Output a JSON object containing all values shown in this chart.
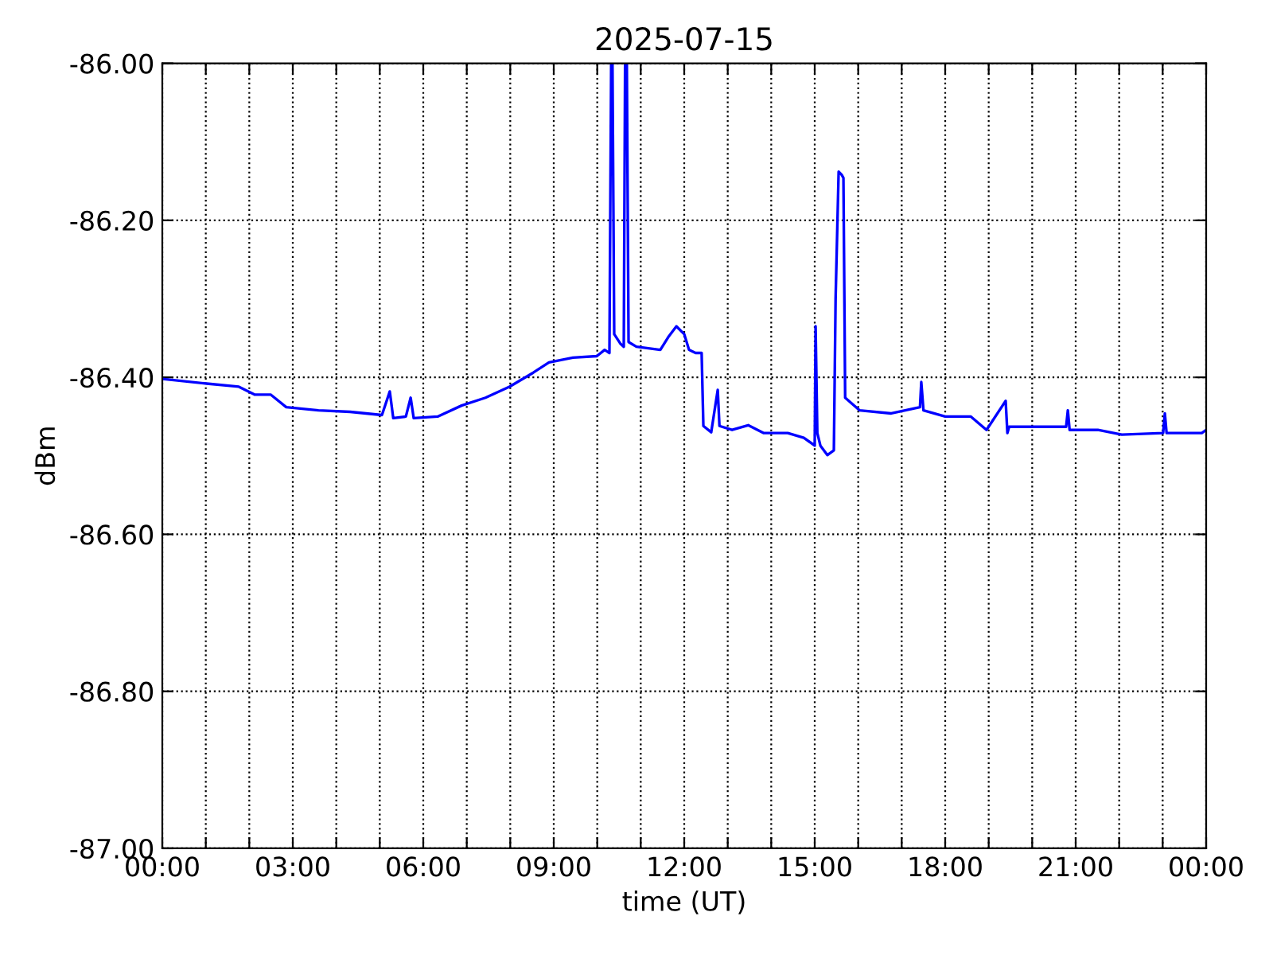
{
  "chart_data": {
    "type": "line",
    "title": "2025-07-15",
    "xlabel": "time (UT)",
    "ylabel": "dBm",
    "x": [
      0,
      1.02,
      1.76,
      2.12,
      2.49,
      2.85,
      3.59,
      4.32,
      5.05,
      5.23,
      5.31,
      5.6,
      5.71,
      5.78,
      6.33,
      6.88,
      7.43,
      7.98,
      8.53,
      8.89,
      9.44,
      9.99,
      10.17,
      10.28,
      10.32,
      10.35,
      10.39,
      10.53,
      10.61,
      10.64,
      10.68,
      10.72,
      10.9,
      11.45,
      11.63,
      11.82,
      12.0,
      12.11,
      12.26,
      12.4,
      12.44,
      12.62,
      12.77,
      12.81,
      13.1,
      13.47,
      13.83,
      14.38,
      14.75,
      15.0,
      15.02,
      15.06,
      15.13,
      15.29,
      15.44,
      15.48,
      15.55,
      15.62,
      15.66,
      15.7,
      16.03,
      16.76,
      17.42,
      17.45,
      17.5,
      18.0,
      18.59,
      18.95,
      19.39,
      19.43,
      19.47,
      20.05,
      20.78,
      20.82,
      20.86,
      21.51,
      22.06,
      23.01,
      23.05,
      23.09,
      23.9,
      24
    ],
    "series": [
      {
        "color": "#0000ff",
        "values": [
          -86.402,
          -86.408,
          -86.412,
          -86.422,
          -86.422,
          -86.438,
          -86.442,
          -86.444,
          -86.448,
          -86.418,
          -86.452,
          -86.45,
          -86.426,
          -86.452,
          -86.45,
          -86.436,
          -86.426,
          -86.412,
          -86.394,
          -86.381,
          -86.375,
          -86.373,
          -86.365,
          -86.369,
          -86.0,
          -86.0,
          -86.345,
          -86.357,
          -86.361,
          -86.0,
          -86.0,
          -86.355,
          -86.361,
          -86.365,
          -86.349,
          -86.335,
          -86.345,
          -86.365,
          -86.369,
          -86.369,
          -86.462,
          -86.47,
          -86.416,
          -86.462,
          -86.467,
          -86.461,
          -86.471,
          -86.471,
          -86.477,
          -86.487,
          -86.335,
          -86.471,
          -86.487,
          -86.499,
          -86.493,
          -86.3,
          -86.138,
          -86.142,
          -86.146,
          -86.426,
          -86.442,
          -86.446,
          -86.438,
          -86.406,
          -86.442,
          -86.45,
          -86.45,
          -86.467,
          -86.43,
          -86.471,
          -86.463,
          -86.463,
          -86.463,
          -86.442,
          -86.467,
          -86.467,
          -86.473,
          -86.471,
          -86.446,
          -86.471,
          -86.471,
          -86.467
        ]
      }
    ],
    "xlim": [
      0,
      24
    ],
    "xticks": [
      {
        "value": 0,
        "label": "00:00"
      },
      {
        "value": 1,
        "label": null
      },
      {
        "value": 2,
        "label": null
      },
      {
        "value": 3,
        "label": "03:00"
      },
      {
        "value": 4,
        "label": null
      },
      {
        "value": 5,
        "label": null
      },
      {
        "value": 6,
        "label": "06:00"
      },
      {
        "value": 7,
        "label": null
      },
      {
        "value": 8,
        "label": null
      },
      {
        "value": 9,
        "label": "09:00"
      },
      {
        "value": 10,
        "label": null
      },
      {
        "value": 11,
        "label": null
      },
      {
        "value": 12,
        "label": "12:00"
      },
      {
        "value": 13,
        "label": null
      },
      {
        "value": 14,
        "label": null
      },
      {
        "value": 15,
        "label": "15:00"
      },
      {
        "value": 16,
        "label": null
      },
      {
        "value": 17,
        "label": null
      },
      {
        "value": 18,
        "label": "18:00"
      },
      {
        "value": 19,
        "label": null
      },
      {
        "value": 20,
        "label": null
      },
      {
        "value": 21,
        "label": "21:00"
      },
      {
        "value": 22,
        "label": null
      },
      {
        "value": 23,
        "label": null
      },
      {
        "value": 24,
        "label": "00:00"
      }
    ],
    "ylim": [
      -87.0,
      -86.0
    ],
    "yticks": [
      {
        "value": -87.0,
        "label": "-87.00"
      },
      {
        "value": -86.8,
        "label": "-86.80"
      },
      {
        "value": -86.6,
        "label": "-86.60"
      },
      {
        "value": -86.4,
        "label": "-86.40"
      },
      {
        "value": -86.2,
        "label": "-86.20"
      },
      {
        "value": -86.0,
        "label": "-86.00"
      }
    ],
    "grid": true,
    "legend": false
  }
}
